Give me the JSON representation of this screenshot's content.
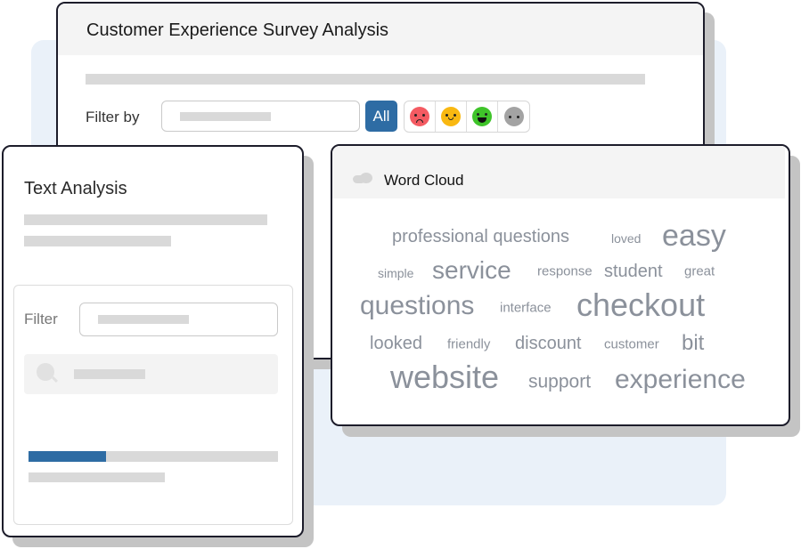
{
  "survey": {
    "title": "Customer Experience Survey Analysis",
    "filter_label": "Filter by",
    "all_label": "All",
    "sentiments": [
      {
        "name": "negative",
        "color": "#f45b62"
      },
      {
        "name": "neutral",
        "color": "#f9b811"
      },
      {
        "name": "positive",
        "color": "#3fc42a"
      },
      {
        "name": "no-sentiment",
        "color": "#a3a3a3"
      }
    ]
  },
  "text_analysis": {
    "title": "Text Analysis",
    "filter_label": "Filter",
    "progress_percent": 31,
    "accent": "#2e6ca4"
  },
  "word_cloud": {
    "title": "Word Cloud",
    "icon": "cloud-icon",
    "words": [
      "professional questions",
      "loved",
      "easy",
      "simple",
      "service",
      "response",
      "student",
      "great",
      "questions",
      "interface",
      "checkout",
      "looked",
      "friendly",
      "discount",
      "customer",
      "bit",
      "website",
      "support",
      "experience"
    ]
  }
}
